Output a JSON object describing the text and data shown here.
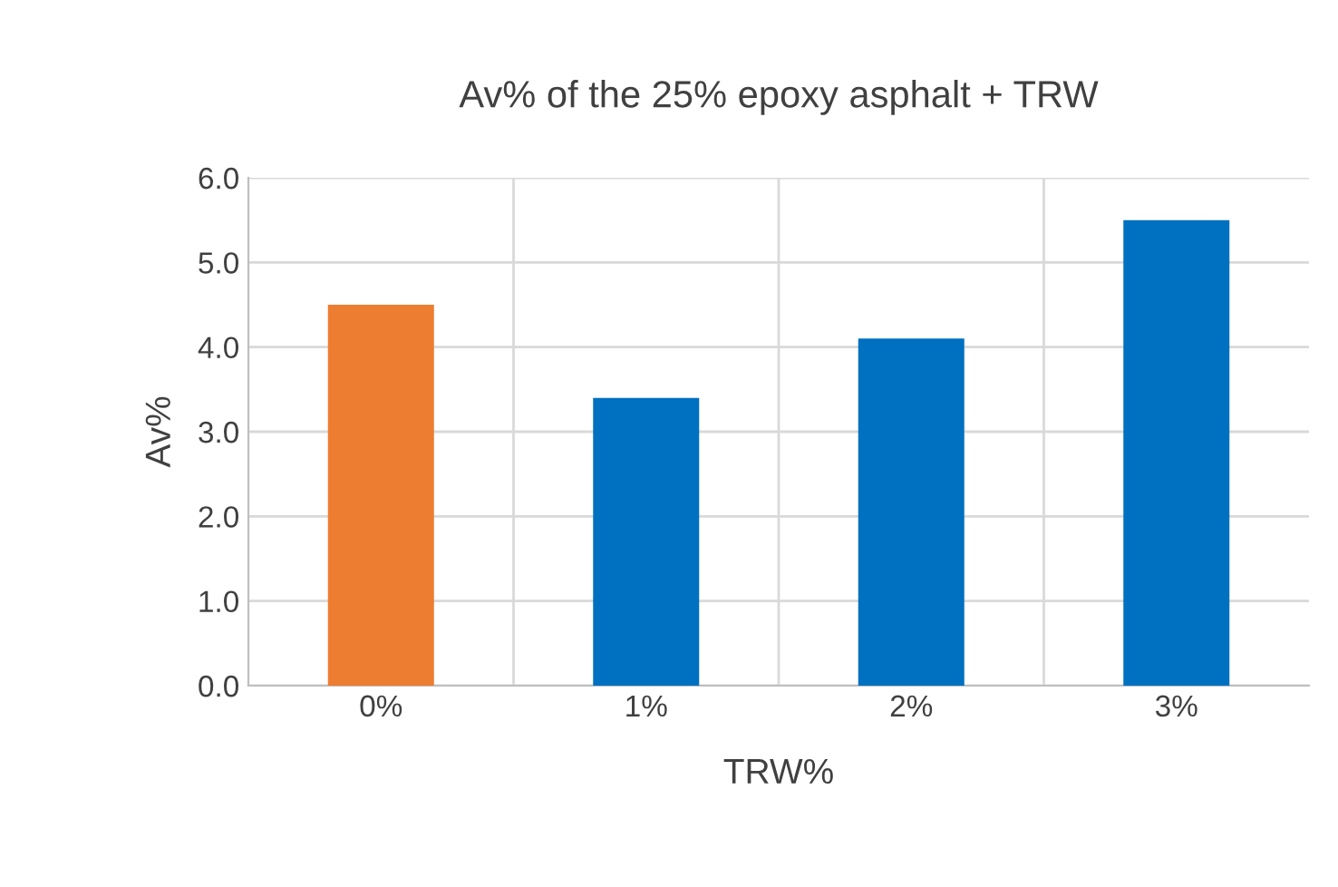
{
  "chart_data": {
    "type": "bar",
    "title": "Av% of the 25% epoxy asphalt + TRW",
    "xlabel": "TRW%",
    "ylabel": "Av%",
    "categories": [
      "0%",
      "1%",
      "2%",
      "3%"
    ],
    "values": [
      4.5,
      3.4,
      4.1,
      5.5
    ],
    "colors": [
      "#ed7d31",
      "#0070c0",
      "#0070c0",
      "#0070c0"
    ],
    "ylim": [
      0,
      6
    ],
    "yticks": [
      {
        "value": 0,
        "label": "0.0"
      },
      {
        "value": 1,
        "label": "1.0"
      },
      {
        "value": 2,
        "label": "2.0"
      },
      {
        "value": 3,
        "label": "3.0"
      },
      {
        "value": 4,
        "label": "4.0"
      },
      {
        "value": 5,
        "label": "5.0"
      },
      {
        "value": 6,
        "label": "6.0"
      }
    ],
    "grid": true
  }
}
